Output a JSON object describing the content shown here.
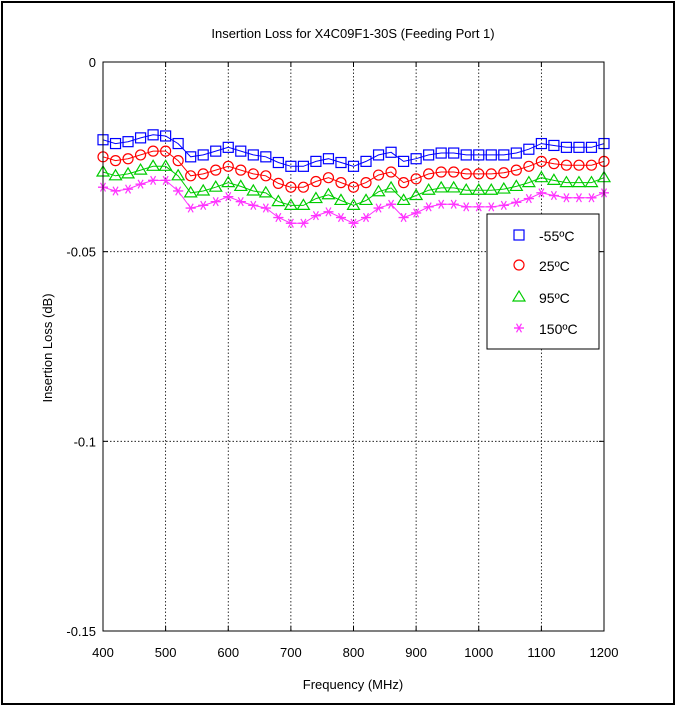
{
  "chart_data": {
    "type": "line",
    "title": "Insertion Loss for X4C09F1-30S (Feeding Port 1)",
    "xlabel": "Frequency (MHz)",
    "ylabel": "Insertion Loss (dB)",
    "xlim": [
      400,
      1200
    ],
    "ylim": [
      -0.15,
      0
    ],
    "xticks": [
      400,
      500,
      600,
      700,
      800,
      900,
      1000,
      1100,
      1200
    ],
    "xtick_labels": [
      "400",
      "500",
      "600",
      "700",
      "800",
      "900",
      "1000",
      "1100",
      "1200"
    ],
    "yticks": [
      0,
      -0.05,
      -0.1,
      -0.15
    ],
    "ytick_labels": [
      "0",
      "-0.05",
      "-0.1",
      "-0.15"
    ],
    "grid": true,
    "legend_position": "right",
    "x": [
      400,
      420,
      440,
      460,
      480,
      500,
      520,
      540,
      560,
      580,
      600,
      620,
      640,
      660,
      680,
      700,
      720,
      740,
      760,
      780,
      800,
      820,
      840,
      860,
      880,
      900,
      920,
      940,
      960,
      980,
      1000,
      1020,
      1040,
      1060,
      1080,
      1100,
      1120,
      1140,
      1160,
      1180,
      1200
    ],
    "series": [
      {
        "name": "-55ºC",
        "marker": "square",
        "color": "#0000ff",
        "values": [
          -0.0205,
          -0.0215,
          -0.021,
          -0.02,
          -0.0192,
          -0.0195,
          -0.0215,
          -0.025,
          -0.0245,
          -0.0235,
          -0.0225,
          -0.0235,
          -0.0245,
          -0.025,
          -0.0265,
          -0.0275,
          -0.0275,
          -0.0262,
          -0.0255,
          -0.0265,
          -0.0275,
          -0.0262,
          -0.0245,
          -0.0238,
          -0.0262,
          -0.0255,
          -0.0245,
          -0.024,
          -0.024,
          -0.0245,
          -0.0245,
          -0.0245,
          -0.0245,
          -0.024,
          -0.023,
          -0.0215,
          -0.022,
          -0.0225,
          -0.0225,
          -0.0225,
          -0.0215
        ]
      },
      {
        "name": "25ºC",
        "marker": "circle",
        "color": "#ff0000",
        "values": [
          -0.025,
          -0.026,
          -0.0255,
          -0.0245,
          -0.0235,
          -0.0235,
          -0.026,
          -0.03,
          -0.0295,
          -0.0285,
          -0.0275,
          -0.0285,
          -0.0295,
          -0.03,
          -0.032,
          -0.033,
          -0.033,
          -0.0315,
          -0.0305,
          -0.0318,
          -0.033,
          -0.0318,
          -0.0298,
          -0.029,
          -0.0318,
          -0.0308,
          -0.0295,
          -0.029,
          -0.029,
          -0.0295,
          -0.0295,
          -0.0295,
          -0.0292,
          -0.0285,
          -0.0275,
          -0.0262,
          -0.0268,
          -0.0272,
          -0.0272,
          -0.0272,
          -0.0262
        ]
      },
      {
        "name": "95ºC",
        "marker": "triangle",
        "color": "#00cc00",
        "values": [
          -0.029,
          -0.03,
          -0.0295,
          -0.0285,
          -0.0275,
          -0.0275,
          -0.03,
          -0.0345,
          -0.034,
          -0.033,
          -0.0318,
          -0.0328,
          -0.034,
          -0.0345,
          -0.0368,
          -0.0378,
          -0.0378,
          -0.036,
          -0.035,
          -0.0365,
          -0.0378,
          -0.0365,
          -0.0342,
          -0.0332,
          -0.0365,
          -0.0352,
          -0.0338,
          -0.0332,
          -0.0332,
          -0.0338,
          -0.0338,
          -0.0338,
          -0.0335,
          -0.0328,
          -0.0318,
          -0.0305,
          -0.0312,
          -0.0318,
          -0.0318,
          -0.0318,
          -0.0305
        ]
      },
      {
        "name": "150ºC",
        "marker": "star",
        "color": "#ff33ff",
        "values": [
          -0.033,
          -0.034,
          -0.0335,
          -0.0322,
          -0.0312,
          -0.0312,
          -0.034,
          -0.0385,
          -0.0378,
          -0.0368,
          -0.0355,
          -0.0368,
          -0.0378,
          -0.0385,
          -0.041,
          -0.0425,
          -0.0425,
          -0.0405,
          -0.0395,
          -0.041,
          -0.0425,
          -0.041,
          -0.0385,
          -0.0375,
          -0.041,
          -0.0398,
          -0.0382,
          -0.0375,
          -0.0375,
          -0.0382,
          -0.0382,
          -0.0382,
          -0.0378,
          -0.037,
          -0.036,
          -0.0345,
          -0.0352,
          -0.0358,
          -0.0358,
          -0.0358,
          -0.0345
        ]
      }
    ]
  }
}
